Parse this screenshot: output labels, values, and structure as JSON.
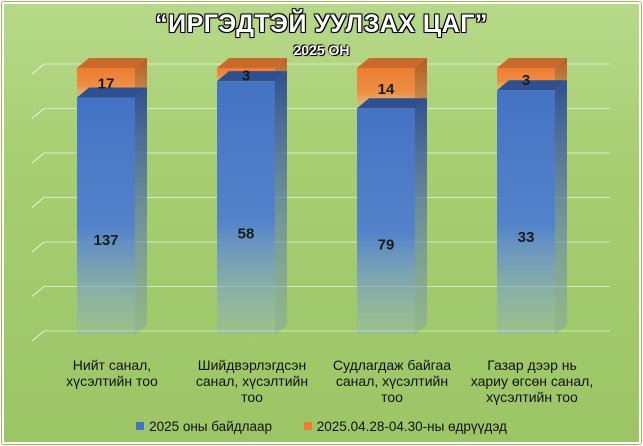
{
  "chart_data": {
    "type": "bar",
    "stacked": true,
    "title": "“ИРГЭДТЭЙ УУЛЗАХ ЦАГ”",
    "subtitle": "2025 ОН",
    "categories": [
      [
        "Нийт санал,",
        "хүсэлтийн тоо"
      ],
      [
        "Шийдвэрлэгдсэн",
        "санал, хүсэлтийн",
        "тоо"
      ],
      [
        "Судлагдаж байгаа",
        "санал, хүсэлтийн",
        "тоо"
      ],
      [
        "Газар дээр нь",
        "хариу өгсөн санал,",
        "хүсэлтийн тоо"
      ]
    ],
    "series": [
      {
        "name": "2025 оны байдлаар",
        "values": [
          137,
          58,
          79,
          33
        ],
        "color": "#4472c4"
      },
      {
        "name": "2025.04.28-04.30-ны өдрүүдэд",
        "values": [
          17,
          3,
          14,
          3
        ],
        "color": "#ed7d31"
      }
    ],
    "normalized_100_percent": true,
    "grid": true,
    "legend_position": "bottom"
  }
}
